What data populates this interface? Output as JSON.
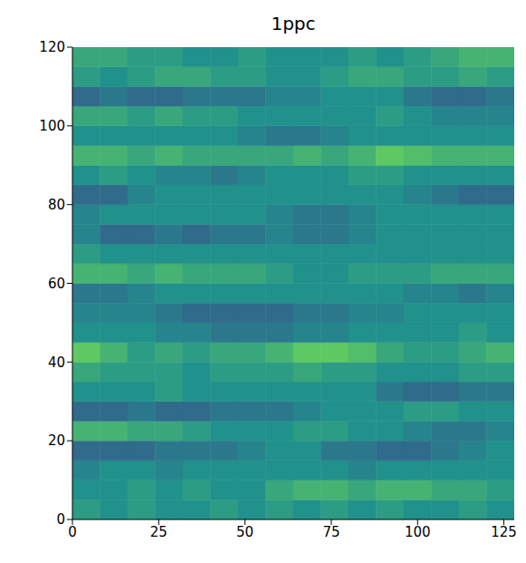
{
  "chart_data": {
    "type": "heatmap",
    "title": "1ppc",
    "xlim": [
      0,
      128
    ],
    "ylim": [
      0,
      120
    ],
    "xticks": [
      0,
      25,
      50,
      75,
      100,
      125
    ],
    "yticks": [
      0,
      20,
      40,
      60,
      80,
      100,
      120
    ],
    "x_edges": [
      0,
      8,
      16,
      24,
      32,
      40,
      48,
      56,
      64,
      72,
      80,
      88,
      96,
      104,
      112,
      120,
      128
    ],
    "y_edges": [
      0,
      5,
      10,
      15,
      20,
      25,
      30,
      35,
      40,
      45,
      50,
      55,
      60,
      65,
      70,
      75,
      80,
      85,
      90,
      95,
      100,
      105,
      110,
      115,
      120
    ],
    "color_range": [
      0,
      2
    ],
    "cells": [
      [
        1.1,
        1.0,
        1.1,
        1.0,
        1.0,
        1.1,
        1.0,
        1.1,
        1.0,
        1.1,
        1.0,
        1.1,
        1.0,
        1.0,
        1.1,
        1.0
      ],
      [
        1.0,
        1.0,
        1.1,
        1.0,
        1.1,
        1.0,
        1.0,
        1.2,
        1.3,
        1.3,
        1.2,
        1.3,
        1.3,
        1.2,
        1.2,
        1.1
      ],
      [
        0.9,
        1.0,
        1.0,
        0.9,
        1.0,
        1.0,
        1.0,
        1.0,
        1.0,
        1.0,
        0.9,
        1.0,
        1.0,
        1.0,
        1.0,
        1.0
      ],
      [
        0.7,
        0.7,
        0.7,
        0.8,
        0.8,
        0.8,
        0.9,
        1.0,
        1.0,
        0.8,
        0.8,
        0.7,
        0.7,
        0.8,
        0.9,
        1.0
      ],
      [
        1.3,
        1.3,
        1.2,
        1.2,
        1.1,
        1.0,
        1.0,
        1.0,
        1.1,
        1.1,
        1.0,
        1.0,
        0.9,
        0.8,
        0.8,
        0.9
      ],
      [
        0.7,
        0.7,
        0.8,
        0.7,
        0.7,
        0.8,
        0.8,
        0.8,
        0.9,
        1.0,
        1.0,
        1.0,
        1.1,
        1.1,
        1.0,
        1.0
      ],
      [
        1.0,
        1.0,
        1.0,
        1.1,
        1.0,
        1.0,
        1.0,
        1.0,
        1.0,
        1.0,
        1.0,
        0.8,
        0.7,
        0.7,
        0.8,
        0.8
      ],
      [
        1.2,
        1.1,
        1.1,
        1.1,
        1.0,
        1.1,
        1.1,
        1.1,
        1.2,
        1.1,
        1.1,
        1.0,
        1.0,
        1.0,
        1.1,
        1.1
      ],
      [
        1.5,
        1.3,
        1.1,
        1.2,
        1.1,
        1.2,
        1.2,
        1.3,
        1.5,
        1.5,
        1.4,
        1.2,
        1.1,
        1.1,
        1.2,
        1.3
      ],
      [
        1.0,
        1.0,
        1.0,
        0.9,
        0.9,
        0.8,
        0.8,
        0.8,
        0.9,
        0.9,
        1.0,
        1.0,
        1.0,
        1.0,
        1.1,
        1.0
      ],
      [
        0.9,
        0.9,
        0.9,
        0.8,
        0.7,
        0.7,
        0.7,
        0.7,
        0.8,
        0.8,
        0.9,
        0.9,
        1.0,
        1.0,
        1.0,
        1.0
      ],
      [
        0.8,
        0.8,
        0.9,
        1.0,
        1.0,
        1.0,
        1.0,
        1.0,
        1.0,
        1.0,
        1.0,
        1.0,
        0.9,
        0.9,
        0.8,
        0.9
      ],
      [
        1.3,
        1.3,
        1.2,
        1.3,
        1.2,
        1.2,
        1.2,
        1.1,
        1.0,
        1.0,
        1.1,
        1.1,
        1.1,
        1.2,
        1.2,
        1.2
      ],
      [
        1.1,
        1.0,
        1.0,
        1.0,
        1.0,
        1.0,
        1.0,
        1.0,
        1.0,
        1.0,
        1.0,
        1.0,
        1.0,
        1.0,
        1.0,
        1.0
      ],
      [
        0.9,
        0.7,
        0.7,
        0.8,
        0.7,
        0.8,
        0.8,
        0.9,
        0.8,
        0.8,
        0.9,
        1.0,
        1.0,
        1.0,
        1.0,
        1.0
      ],
      [
        0.9,
        1.0,
        1.0,
        1.0,
        1.0,
        1.0,
        1.0,
        0.9,
        0.8,
        0.8,
        0.9,
        1.0,
        1.0,
        1.0,
        1.0,
        1.0
      ],
      [
        0.7,
        0.7,
        0.9,
        1.0,
        1.0,
        1.0,
        1.0,
        1.0,
        1.0,
        1.0,
        1.0,
        1.0,
        0.9,
        0.8,
        0.7,
        0.7
      ],
      [
        1.0,
        1.1,
        1.0,
        0.9,
        0.9,
        0.8,
        0.9,
        1.0,
        1.0,
        1.0,
        1.1,
        1.1,
        1.0,
        1.0,
        1.0,
        1.0
      ],
      [
        1.3,
        1.3,
        1.2,
        1.3,
        1.2,
        1.2,
        1.2,
        1.2,
        1.3,
        1.2,
        1.3,
        1.5,
        1.4,
        1.3,
        1.3,
        1.3
      ],
      [
        1.0,
        1.0,
        1.0,
        1.0,
        1.0,
        1.0,
        0.9,
        0.8,
        0.8,
        0.9,
        1.0,
        1.0,
        1.0,
        1.0,
        1.0,
        1.0
      ],
      [
        1.2,
        1.2,
        1.1,
        1.2,
        1.1,
        1.1,
        1.0,
        1.0,
        1.0,
        1.0,
        1.0,
        1.1,
        1.0,
        0.9,
        0.9,
        0.9
      ],
      [
        0.7,
        0.8,
        0.7,
        0.7,
        0.8,
        0.8,
        0.8,
        0.9,
        0.9,
        1.0,
        1.0,
        1.0,
        0.8,
        0.7,
        0.7,
        0.8
      ],
      [
        1.1,
        1.0,
        1.1,
        1.2,
        1.2,
        1.1,
        1.1,
        1.0,
        1.0,
        1.1,
        1.2,
        1.2,
        1.1,
        1.1,
        1.2,
        1.1
      ],
      [
        1.2,
        1.2,
        1.1,
        1.1,
        1.0,
        1.0,
        1.1,
        1.0,
        1.0,
        1.0,
        1.1,
        1.0,
        1.1,
        1.2,
        1.3,
        1.3
      ]
    ]
  }
}
